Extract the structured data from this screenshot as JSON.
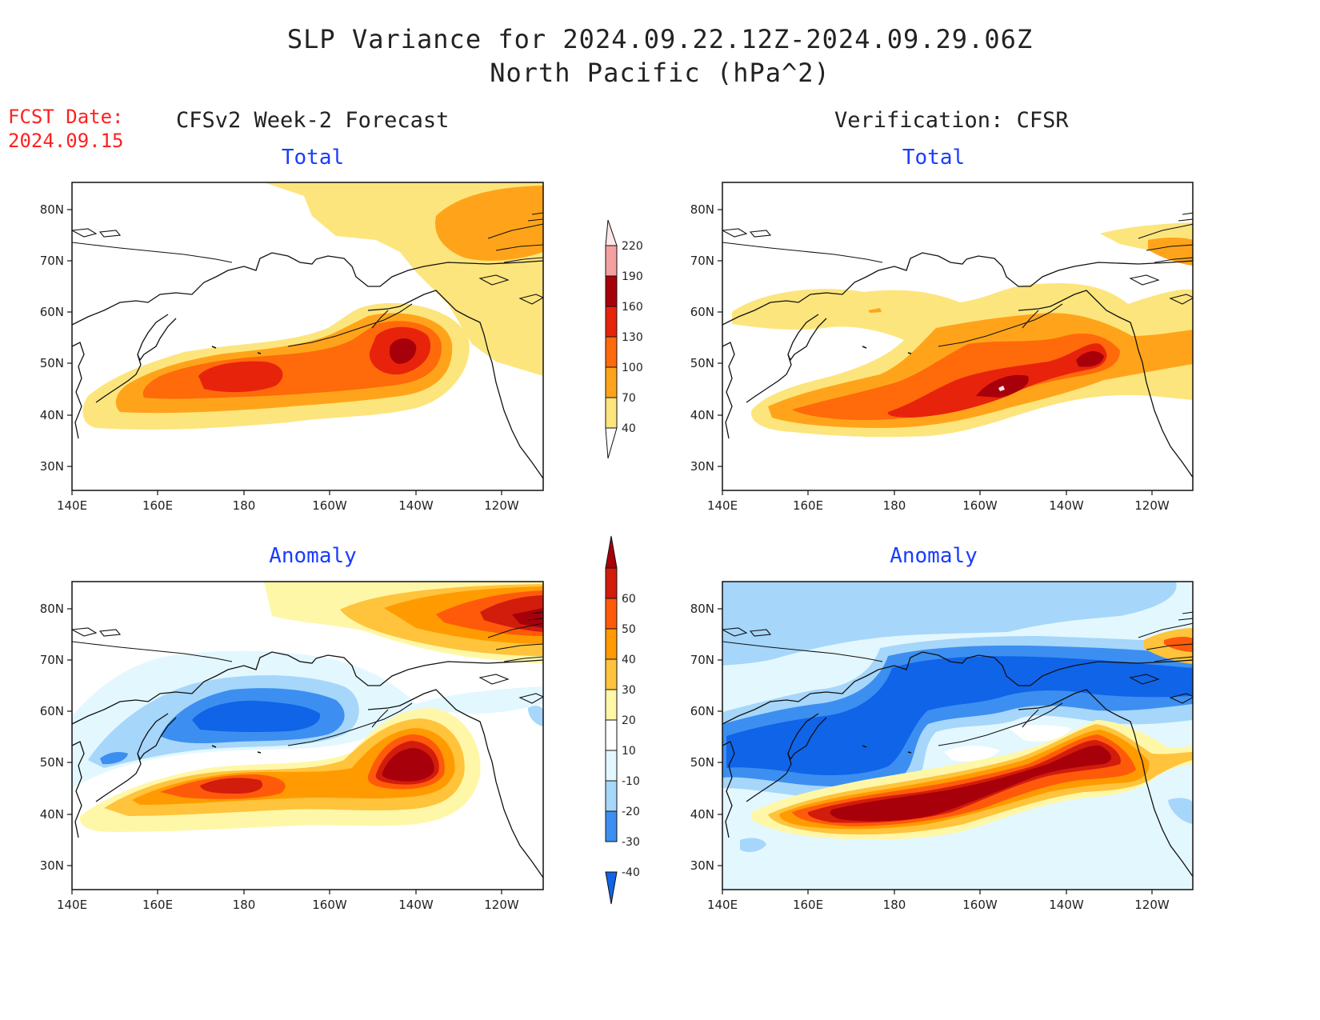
{
  "header": {
    "title_line1": "SLP Variance for 2024.09.22.12Z-2024.09.29.06Z",
    "title_line2": "North Pacific (hPa^2)",
    "fcst_label": "FCST Date:",
    "fcst_date": "2024.09.15"
  },
  "columns": {
    "left": "CFSv2 Week-2 Forecast",
    "right": "Verification: CFSR"
  },
  "panels": [
    {
      "id": "forecast-total",
      "title": "Total"
    },
    {
      "id": "verification-total",
      "title": "Total"
    },
    {
      "id": "forecast-anomaly",
      "title": "Anomaly"
    },
    {
      "id": "verification-anomaly",
      "title": "Anomaly"
    }
  ],
  "axes": {
    "lon_ticks": [
      "140E",
      "160E",
      "180",
      "160W",
      "140W",
      "120W"
    ],
    "lat_ticks": [
      "80N",
      "70N",
      "60N",
      "50N",
      "40N",
      "30N"
    ]
  },
  "colorbars": {
    "total": {
      "levels": [
        "40",
        "70",
        "100",
        "130",
        "160",
        "190",
        "220"
      ],
      "colors": [
        "#fde57d",
        "#ffa41a",
        "#ff6a0a",
        "#e8230c",
        "#a8000a",
        "#f4a0a0",
        "#fde6e6"
      ]
    },
    "anomaly": {
      "levels": [
        "-40",
        "-30",
        "-20",
        "-10",
        "10",
        "20",
        "30",
        "40",
        "50",
        "60"
      ],
      "colors": [
        "#1064e8",
        "#3c8ff0",
        "#a6d6fa",
        "#e3f7ff",
        "#ffffff",
        "#fff7a8",
        "#ffc33c",
        "#ff9b00",
        "#ff5a0a",
        "#d21c0c",
        "#a8000a"
      ]
    }
  }
}
